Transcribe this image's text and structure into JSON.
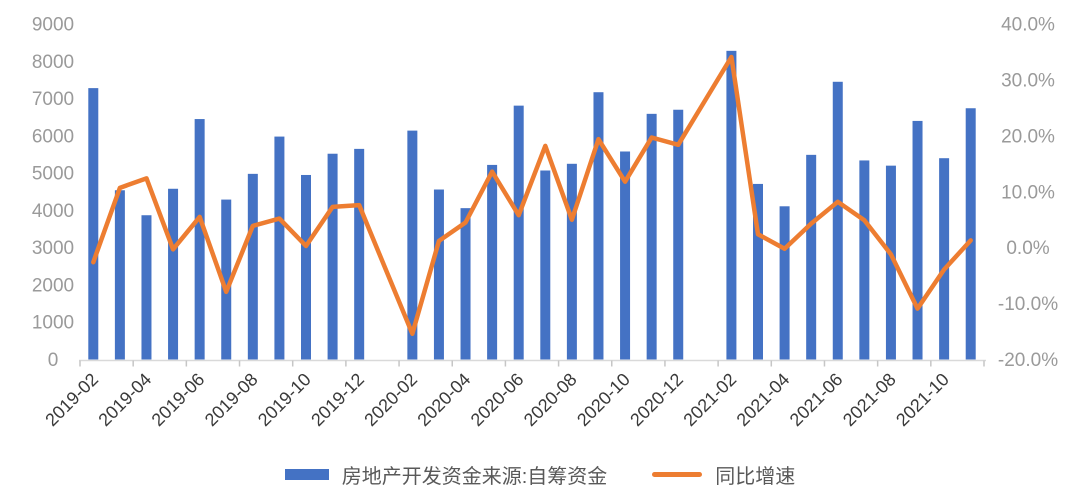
{
  "chart_data": {
    "type": "combo-bar-line",
    "title": "",
    "grid": false,
    "legend_position": "bottom-center",
    "categories": [
      "2019-02",
      "2019-03",
      "2019-04",
      "2019-05",
      "2019-06",
      "2019-07",
      "2019-08",
      "2019-09",
      "2019-10",
      "2019-11",
      "2019-12",
      "2020-01",
      "2020-02",
      "2020-03",
      "2020-04",
      "2020-05",
      "2020-06",
      "2020-07",
      "2020-08",
      "2020-09",
      "2020-10",
      "2020-11",
      "2020-12",
      "2021-01",
      "2021-02",
      "2021-03",
      "2021-04",
      "2021-05",
      "2021-06",
      "2021-07",
      "2021-08",
      "2021-09",
      "2021-10",
      "2021-11"
    ],
    "x_label_interval": 2,
    "x_tick_labels": [
      "2019-02",
      "2019-04",
      "2019-06",
      "2019-08",
      "2019-10",
      "2019-12",
      "2020-02",
      "2020-04",
      "2020-06",
      "2020-08",
      "2020-10",
      "2020-12",
      "2021-02",
      "2021-04",
      "2021-06",
      "2021-08",
      "2021-10"
    ],
    "series": [
      {
        "name": "房地产开发资金来源:自筹资金",
        "type": "bar",
        "axis": "left",
        "color": "#4472C4",
        "values": [
          7280,
          4540,
          3870,
          4580,
          6450,
          4290,
          4980,
          5980,
          4950,
          5520,
          5650,
          null,
          6140,
          4560,
          4060,
          5220,
          6810,
          5070,
          5250,
          7170,
          5580,
          6590,
          6700,
          null,
          8280,
          4710,
          4110,
          5490,
          7450,
          5340,
          5200,
          6400,
          5400,
          6740
        ]
      },
      {
        "name": "同比增速",
        "type": "line",
        "axis": "right",
        "color": "#ED7D31",
        "values": [
          -2.6,
          10.7,
          12.4,
          -0.3,
          5.5,
          -7.9,
          3.9,
          5.2,
          0.3,
          7.3,
          7.6,
          null,
          -15.4,
          1.2,
          4.5,
          13.6,
          5.8,
          18.2,
          5.0,
          19.4,
          11.8,
          19.7,
          18.4,
          null,
          34.1,
          2.4,
          -0.2,
          4.3,
          8.2,
          4.9,
          -1.2,
          -10.9,
          -3.9,
          1.3
        ]
      }
    ],
    "left_axis": {
      "min": 0,
      "max": 9000,
      "step": 1000,
      "tick_values": [
        0,
        1000,
        2000,
        3000,
        4000,
        5000,
        6000,
        7000,
        8000,
        9000
      ],
      "tick_labels": [
        "0",
        "1000",
        "2000",
        "3000",
        "4000",
        "5000",
        "6000",
        "7000",
        "8000",
        "9000"
      ]
    },
    "right_axis": {
      "min": -20,
      "max": 40,
      "step": 10,
      "tick_values": [
        40,
        30,
        20,
        10,
        0,
        -10,
        -20
      ],
      "tick_labels": [
        "40.0%",
        "30.0%",
        "20.0%",
        "10.0%",
        "0.0%",
        "-10.0%",
        "-20.0%"
      ]
    }
  },
  "legend": {
    "series1": "房地产开发资金来源:自筹资金",
    "series2": "同比增速"
  },
  "colors": {
    "bar": "#4472C4",
    "line": "#ED7D31",
    "left_axis_text": "#9a9a9a",
    "right_axis_text": "#9a9a9a",
    "x_axis_text": "#3a3a3a",
    "legend_text": "#595959",
    "axis_line": "#D9D9D9",
    "tick_mark": "#C6C6C6",
    "background": "#FFFFFF"
  }
}
